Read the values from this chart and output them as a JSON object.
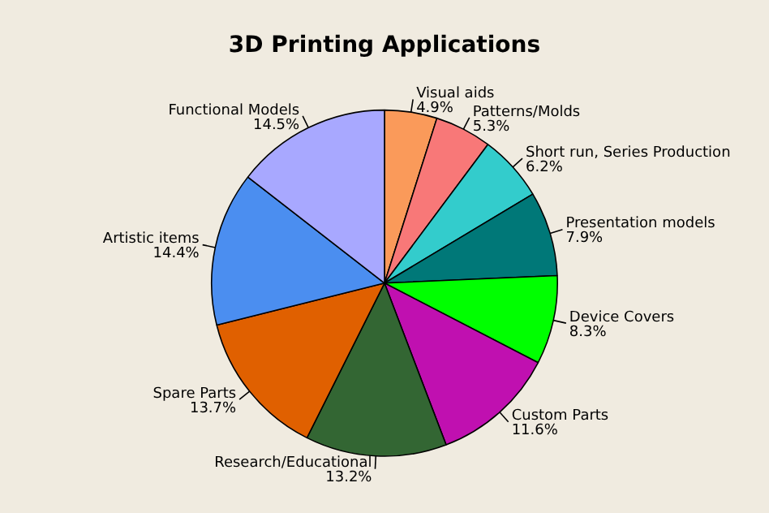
{
  "chart_data": {
    "type": "pie",
    "title": "3D Printing Applications",
    "categories": [
      "Visual aids",
      "Patterns/Molds",
      "Short run, Series Production",
      "Presentation models",
      "Device Covers",
      "Custom Parts",
      "Research/Educational",
      "Spare Parts",
      "Artistic items",
      "Functional Models"
    ],
    "values": [
      4.9,
      5.3,
      6.2,
      7.9,
      8.3,
      11.6,
      13.2,
      13.7,
      14.4,
      14.5
    ],
    "value_labels": [
      "4.9%",
      "5.3%",
      "6.2%",
      "7.9%",
      "8.3%",
      "11.6%",
      "13.2%",
      "13.7%",
      "14.4%",
      "14.5%"
    ],
    "colors": [
      "#fa9a5a",
      "#f87878",
      "#33cccc",
      "#007878",
      "#00ff00",
      "#c010b0",
      "#336633",
      "#e06000",
      "#4b8ef0",
      "#a8a8ff"
    ],
    "legend": false
  }
}
